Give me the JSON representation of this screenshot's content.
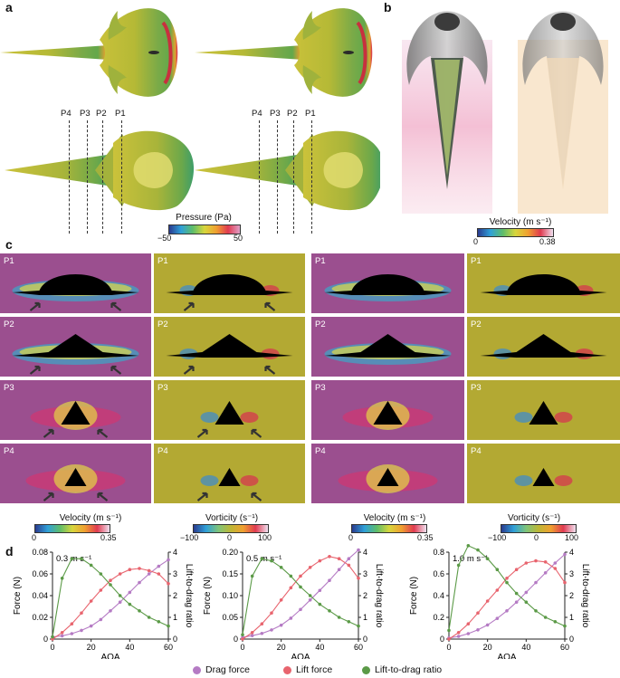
{
  "panels": {
    "a": "a",
    "b": "b",
    "c": "c",
    "d": "d"
  },
  "panel_a": {
    "planes": [
      "P4",
      "P3",
      "P2",
      "P1"
    ],
    "colorbar": {
      "title": "Pressure (Pa)",
      "min": "−50",
      "max": "50"
    }
  },
  "panel_b": {
    "colorbar": {
      "title": "Velocity (m s⁻¹)",
      "min": "0",
      "max": "0.38"
    }
  },
  "panel_c": {
    "row_labels": [
      "P1",
      "P2",
      "P3",
      "P4"
    ],
    "colorbars": [
      {
        "title": "Velocity (m s⁻¹)",
        "min": "0",
        "max": "0.35"
      },
      {
        "title": "Vorticity (s⁻¹)",
        "min": "−100",
        "mid": "0",
        "max": "100"
      },
      {
        "title": "Velocity (m s⁻¹)",
        "min": "0",
        "max": "0.35"
      },
      {
        "title": "Vorticity (s⁻¹)",
        "min": "−100",
        "mid": "0",
        "max": "100"
      }
    ]
  },
  "panel_d": {
    "legend": [
      {
        "label": "Drag force",
        "color": "#b57bc4"
      },
      {
        "label": "Lift force",
        "color": "#e8646e"
      },
      {
        "label": "Lift-to-drag ratio",
        "color": "#5b9a47"
      }
    ],
    "xlabel": "AOA",
    "ylabel_left": "Force (N)",
    "ylabel_right": "Lift-to-drag ratio"
  },
  "chart_data": [
    {
      "type": "line",
      "title": "0.3 m s⁻¹",
      "xlabel": "AOA",
      "ylabel": "Force (N)",
      "y2label": "Lift-to-drag ratio",
      "x": [
        0,
        5,
        10,
        15,
        20,
        25,
        30,
        35,
        40,
        45,
        50,
        55,
        60
      ],
      "xlim": [
        0,
        60
      ],
      "xticks": [
        0,
        20,
        40,
        60
      ],
      "ylim": [
        0,
        0.08
      ],
      "yticks": [
        0,
        0.02,
        0.04,
        0.06,
        0.08
      ],
      "y2lim": [
        0,
        4
      ],
      "y2ticks": [
        0,
        1,
        2,
        3,
        4
      ],
      "series": [
        {
          "name": "Drag force",
          "axis": "left",
          "values": [
            0.002,
            0.003,
            0.005,
            0.008,
            0.012,
            0.018,
            0.026,
            0.034,
            0.043,
            0.052,
            0.06,
            0.067,
            0.073
          ]
        },
        {
          "name": "Lift force",
          "axis": "left",
          "values": [
            0.0,
            0.006,
            0.014,
            0.024,
            0.035,
            0.045,
            0.054,
            0.06,
            0.064,
            0.065,
            0.063,
            0.06,
            0.051
          ]
        },
        {
          "name": "Lift-to-drag ratio",
          "axis": "right",
          "values": [
            0.1,
            2.8,
            3.7,
            3.7,
            3.4,
            3.0,
            2.5,
            2.0,
            1.6,
            1.3,
            1.0,
            0.8,
            0.6
          ]
        }
      ]
    },
    {
      "type": "line",
      "title": "0.5 m s⁻¹",
      "xlabel": "AOA",
      "ylabel": "Force (N)",
      "y2label": "Lift-to-drag ratio",
      "x": [
        0,
        5,
        10,
        15,
        20,
        25,
        30,
        35,
        40,
        45,
        50,
        55,
        60
      ],
      "xlim": [
        0,
        60
      ],
      "xticks": [
        0,
        20,
        40,
        60
      ],
      "ylim": [
        0,
        0.2
      ],
      "yticks": [
        0,
        0.05,
        0.1,
        0.15,
        0.2
      ],
      "y2lim": [
        0,
        4
      ],
      "y2ticks": [
        0,
        1,
        2,
        3,
        4
      ],
      "series": [
        {
          "name": "Drag force",
          "axis": "left",
          "values": [
            0.004,
            0.008,
            0.013,
            0.021,
            0.032,
            0.048,
            0.068,
            0.09,
            0.112,
            0.135,
            0.16,
            0.185,
            0.205
          ]
        },
        {
          "name": "Lift force",
          "axis": "left",
          "values": [
            0.0,
            0.015,
            0.035,
            0.06,
            0.09,
            0.118,
            0.145,
            0.165,
            0.18,
            0.19,
            0.185,
            0.17,
            0.14
          ]
        },
        {
          "name": "Lift-to-drag ratio",
          "axis": "right",
          "values": [
            0.2,
            2.9,
            3.7,
            3.6,
            3.3,
            2.9,
            2.4,
            2.0,
            1.6,
            1.3,
            1.0,
            0.8,
            0.6
          ]
        }
      ]
    },
    {
      "type": "line",
      "title": "1.0 m s⁻¹",
      "xlabel": "AOA",
      "ylabel": "Force (N)",
      "y2label": "Lift-to-drag ratio",
      "x": [
        0,
        5,
        10,
        15,
        20,
        25,
        30,
        35,
        40,
        45,
        50,
        55,
        60
      ],
      "xlim": [
        0,
        60
      ],
      "xticks": [
        0,
        20,
        40,
        60
      ],
      "ylim": [
        0,
        0.8
      ],
      "yticks": [
        0,
        0.2,
        0.4,
        0.6,
        0.8
      ],
      "y2lim": [
        0,
        4
      ],
      "y2ticks": [
        0,
        1,
        2,
        3,
        4
      ],
      "series": [
        {
          "name": "Drag force",
          "axis": "left",
          "values": [
            0.01,
            0.025,
            0.05,
            0.085,
            0.13,
            0.19,
            0.26,
            0.34,
            0.43,
            0.52,
            0.61,
            0.7,
            0.78
          ]
        },
        {
          "name": "Lift force",
          "axis": "left",
          "values": [
            0.0,
            0.06,
            0.14,
            0.24,
            0.35,
            0.45,
            0.56,
            0.64,
            0.7,
            0.72,
            0.71,
            0.65,
            0.52
          ]
        },
        {
          "name": "Lift-to-drag ratio",
          "axis": "right",
          "values": [
            0.4,
            3.4,
            4.3,
            4.1,
            3.7,
            3.2,
            2.6,
            2.1,
            1.7,
            1.3,
            1.0,
            0.8,
            0.6
          ]
        }
      ]
    }
  ]
}
